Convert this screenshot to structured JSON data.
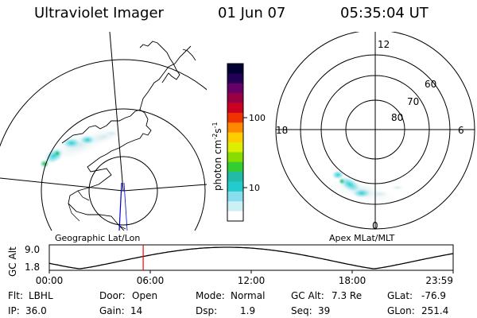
{
  "header": {
    "app_title": "Ultraviolet Imager",
    "date": "01 Jun 07",
    "time": "05:35:04 UT"
  },
  "left_panel": {
    "label": "Geographic Lat/Lon"
  },
  "right_panel": {
    "label": "Apex MLat/MLT",
    "mlt_labels": {
      "top": "12",
      "left": "18",
      "right": "6",
      "bottom": "0"
    },
    "lat_labels": [
      "60",
      "70",
      "80"
    ]
  },
  "colorbar": {
    "unit_label": "photon cm",
    "unit_exp1": "-2",
    "unit_s": "s",
    "unit_exp2": "-1",
    "tick_labels": [
      "100",
      "10"
    ],
    "colors": [
      "#000033",
      "#220055",
      "#660066",
      "#990044",
      "#cc0022",
      "#ee3300",
      "#ff8800",
      "#ffcc00",
      "#ddee00",
      "#88dd00",
      "#33cc33",
      "#22bbaa",
      "#22cccc",
      "#88ddee",
      "#ccf0f5",
      "#ffffff"
    ]
  },
  "altitude_plot": {
    "y_label": "GC Alt",
    "y_ticks": [
      "9.0",
      "1.8"
    ],
    "x_ticks": [
      "00:00",
      "06:00",
      "12:00",
      "18:00",
      "23:59"
    ],
    "marker_time_hours": 5.58,
    "marker_color": "#ff0000"
  },
  "info": {
    "row1": [
      {
        "label": "Flt:",
        "value": "LBHL"
      },
      {
        "label": "Door:",
        "value": "Open"
      },
      {
        "label": "Mode:",
        "value": "Normal"
      },
      {
        "label": "GC Alt:",
        "value": "7.3 Re"
      },
      {
        "label": "GLat:",
        "value": "-76.9"
      }
    ],
    "row2": [
      {
        "label": "IP:",
        "value": "36.0"
      },
      {
        "label": "Gain:",
        "value": "14"
      },
      {
        "label": "Dsp:",
        "value": "1.9"
      },
      {
        "label": "Seq:",
        "value": "39"
      },
      {
        "label": "GLon:",
        "value": "251.4"
      }
    ]
  }
}
